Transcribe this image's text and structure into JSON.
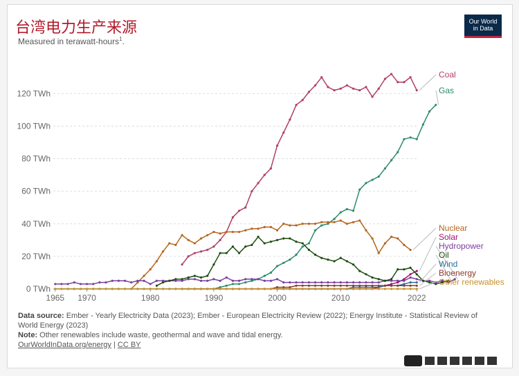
{
  "title": "台湾电力生产来源",
  "subtitle": "Measured in terawatt-hours",
  "subtitle_sup": "1",
  "logo": {
    "line1": "Our World",
    "line2": "in Data"
  },
  "footer": {
    "source_label": "Data source:",
    "source_text": " Ember - Yearly Electricity Data (2023); Ember - European Electricity Review (2022); Energy Institute - Statistical Review of World Energy (2023)",
    "note_label": "Note:",
    "note_text": " Other renewables include waste, geothermal and wave and tidal energy.",
    "link1": "OurWorldInData.org/energy",
    "sep": " | ",
    "link2": "CC BY"
  },
  "chart_data": {
    "type": "line",
    "ylim": [
      0,
      135
    ],
    "xlim": [
      1965,
      2022
    ],
    "yticks": [
      0,
      20,
      40,
      60,
      80,
      100,
      120
    ],
    "ytick_labels": [
      "0 TWh",
      "20 TWh",
      "40 TWh",
      "60 TWh",
      "80 TWh",
      "100 TWh",
      "120 TWh"
    ],
    "xticks": [
      1965,
      1970,
      1980,
      1990,
      2000,
      2010,
      2022
    ],
    "xtick_labels": [
      "1965",
      "1970",
      "1980",
      "1990",
      "2000",
      "2010",
      "2022"
    ],
    "grid": true,
    "series": [
      {
        "name": "Coal",
        "color": "#b13f64",
        "start": 1985,
        "values": [
          15,
          20,
          22,
          23,
          24,
          26,
          30,
          35,
          44,
          48,
          50,
          60,
          65,
          70,
          74,
          88,
          96,
          104,
          113,
          116,
          121,
          125,
          130,
          124,
          122,
          123,
          125,
          123,
          122,
          124,
          118,
          123,
          129,
          132,
          127,
          127,
          130,
          122
        ]
      },
      {
        "name": "Gas",
        "color": "#2e8b6a",
        "start": 1965,
        "values": [
          0,
          0,
          0,
          0,
          0,
          0,
          0,
          0,
          0,
          0,
          0,
          0,
          0,
          0,
          0,
          0,
          0,
          0,
          0,
          0,
          0,
          0,
          0,
          0,
          0,
          0,
          1,
          2,
          3,
          3,
          4,
          5,
          6,
          8,
          10,
          14,
          16,
          18,
          21,
          26,
          28,
          36,
          39,
          40,
          43,
          47,
          49,
          48,
          61,
          65,
          67,
          69,
          74,
          79,
          84,
          92,
          93,
          92,
          101,
          109,
          113
        ]
      },
      {
        "name": "Nuclear",
        "color": "#b5651d",
        "start": 1977,
        "values": [
          0,
          4,
          8,
          12,
          17,
          23,
          28,
          27,
          33,
          30,
          28,
          31,
          33,
          35,
          34,
          35,
          35,
          35,
          36,
          37,
          37,
          38,
          38,
          36,
          40,
          39,
          39,
          40,
          40,
          40,
          41,
          41,
          41,
          42,
          40,
          41,
          42,
          36,
          31,
          22,
          28,
          32,
          31,
          27,
          24
        ]
      },
      {
        "name": "Solar",
        "color": "#a0146f",
        "start": 2000,
        "values": [
          0,
          0,
          0,
          0,
          0,
          0,
          0,
          0,
          0,
          0,
          0,
          0,
          0,
          0,
          0,
          0,
          1,
          2,
          3,
          4,
          6,
          9,
          11
        ]
      },
      {
        "name": "Hydropower",
        "color": "#7a3f9f",
        "start": 1965,
        "values": [
          3,
          3,
          3,
          4,
          3,
          3,
          3,
          4,
          4,
          5,
          5,
          5,
          4,
          5,
          5,
          3,
          5,
          5,
          5,
          5,
          5,
          6,
          6,
          5,
          5,
          6,
          5,
          7,
          5,
          5,
          6,
          6,
          6,
          5,
          5,
          6,
          4,
          4,
          4,
          4,
          4,
          4,
          4,
          4,
          4,
          4,
          4,
          4,
          4,
          4,
          4,
          4,
          5,
          5,
          5,
          5,
          7,
          6,
          5,
          5,
          4,
          5,
          4,
          6
        ]
      },
      {
        "name": "Oil",
        "color": "#1e4d10",
        "start": 1981,
        "values": [
          2,
          4,
          5,
          6,
          6,
          7,
          8,
          7,
          8,
          15,
          22,
          22,
          26,
          22,
          26,
          27,
          32,
          28,
          29,
          30,
          31,
          31,
          29,
          28,
          24,
          21,
          19,
          18,
          17,
          19,
          17,
          15,
          11,
          9,
          7,
          6,
          5,
          6,
          12,
          12,
          13,
          9,
          5,
          4,
          3,
          4,
          5
        ]
      },
      {
        "name": "Wind",
        "color": "#2f6d9e",
        "start": 2000,
        "values": [
          0,
          0,
          0,
          0,
          0,
          0,
          0,
          0,
          0,
          0,
          0,
          0,
          1,
          1,
          1,
          1,
          1,
          2,
          2,
          2,
          3,
          4,
          4
        ]
      },
      {
        "name": "Bioenergy",
        "color": "#8b3a2a",
        "start": 1985,
        "values": [
          0,
          0,
          0,
          0,
          0,
          0,
          0,
          0,
          0,
          0,
          0,
          0,
          0,
          0,
          0,
          1,
          1,
          1,
          2,
          2,
          2,
          2,
          2,
          2,
          2,
          2,
          2,
          2,
          2,
          2,
          2,
          2,
          2,
          2,
          2,
          2,
          2,
          2
        ]
      },
      {
        "name": "Other renewables",
        "color": "#c6922c",
        "start": 1965,
        "values": [
          0,
          0,
          0,
          0,
          0,
          0,
          0,
          0,
          0,
          0,
          0,
          0,
          0,
          0,
          0,
          0,
          0,
          0,
          0,
          0,
          0,
          0,
          0,
          0,
          0,
          0,
          0,
          0,
          0,
          0,
          0,
          0,
          0,
          0,
          0,
          0,
          0,
          0,
          0,
          0,
          0,
          0,
          0,
          0,
          0,
          0,
          0,
          0,
          0,
          0,
          0,
          0,
          0,
          0,
          0,
          0,
          0,
          0
        ]
      }
    ]
  }
}
